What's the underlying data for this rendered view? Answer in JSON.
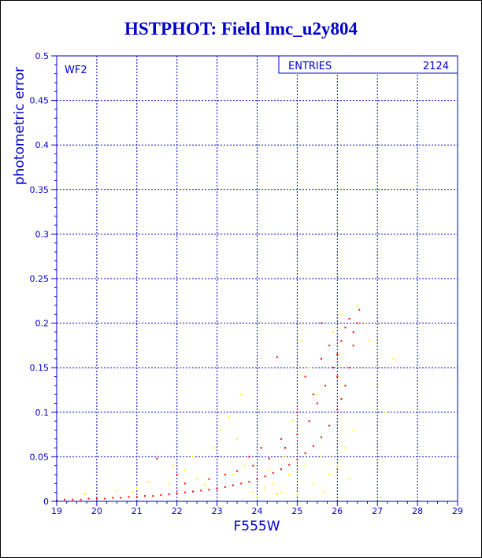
{
  "title": "HSTPHOT: Field lmc_u2y804",
  "colors": {
    "axis": "#0000cc",
    "grid": "#0000cc",
    "series_red": "#ff0000",
    "series_yellow": "#ffff00",
    "title": "#0000cc"
  },
  "stats_box": {
    "label": "ENTRIES",
    "value": "2124"
  },
  "chip_label": "WF2",
  "chart_data": {
    "type": "scatter",
    "title": "HSTPHOT: Field lmc_u2y804",
    "xlabel": "F555W",
    "ylabel": "photometric error",
    "xlim": [
      19,
      29
    ],
    "ylim": [
      0,
      0.5
    ],
    "xticks": [
      "19",
      "20",
      "21",
      "22",
      "23",
      "24",
      "25",
      "26",
      "27",
      "28",
      "29"
    ],
    "yticks": [
      "0",
      "0.05",
      "0.1",
      "0.15",
      "0.2",
      "0.25",
      "0.3",
      "0.35",
      "0.4",
      "0.45",
      "0.5"
    ],
    "grid": true,
    "series": [
      {
        "color": "#ff0000",
        "points": [
          [
            19.0,
            0.001
          ],
          [
            19.2,
            0.002
          ],
          [
            19.4,
            0.002
          ],
          [
            19.6,
            0.002
          ],
          [
            19.8,
            0.003
          ],
          [
            20.0,
            0.003
          ],
          [
            20.2,
            0.003
          ],
          [
            20.4,
            0.004
          ],
          [
            20.6,
            0.004
          ],
          [
            20.8,
            0.005
          ],
          [
            21.0,
            0.005
          ],
          [
            21.2,
            0.006
          ],
          [
            21.4,
            0.006
          ],
          [
            21.6,
            0.007
          ],
          [
            21.8,
            0.008
          ],
          [
            22.0,
            0.009
          ],
          [
            22.2,
            0.01
          ],
          [
            22.4,
            0.011
          ],
          [
            22.6,
            0.012
          ],
          [
            22.8,
            0.013
          ],
          [
            23.0,
            0.014
          ],
          [
            23.2,
            0.016
          ],
          [
            23.4,
            0.018
          ],
          [
            23.6,
            0.02
          ],
          [
            23.8,
            0.022
          ],
          [
            24.0,
            0.025
          ],
          [
            24.2,
            0.028
          ],
          [
            24.4,
            0.032
          ],
          [
            24.6,
            0.036
          ],
          [
            24.8,
            0.041
          ],
          [
            25.0,
            0.047
          ],
          [
            25.2,
            0.054
          ],
          [
            25.4,
            0.062
          ],
          [
            25.6,
            0.072
          ],
          [
            25.8,
            0.085
          ],
          [
            26.0,
            0.103
          ],
          [
            26.1,
            0.115
          ],
          [
            26.2,
            0.13
          ],
          [
            26.3,
            0.15
          ],
          [
            26.4,
            0.175
          ],
          [
            26.5,
            0.2
          ],
          [
            26.55,
            0.215
          ],
          [
            22.8,
            0.025
          ],
          [
            23.2,
            0.03
          ],
          [
            23.5,
            0.034
          ],
          [
            23.9,
            0.04
          ],
          [
            24.3,
            0.048
          ],
          [
            24.7,
            0.06
          ],
          [
            25.0,
            0.075
          ],
          [
            25.3,
            0.09
          ],
          [
            25.5,
            0.11
          ],
          [
            25.7,
            0.13
          ],
          [
            25.9,
            0.15
          ],
          [
            26.0,
            0.165
          ],
          [
            26.1,
            0.18
          ],
          [
            26.2,
            0.195
          ],
          [
            25.8,
            0.175
          ],
          [
            25.2,
            0.14
          ],
          [
            24.5,
            0.162
          ],
          [
            25.6,
            0.2
          ],
          [
            26.3,
            0.205
          ],
          [
            26.4,
            0.19
          ],
          [
            21.5,
            0.048
          ],
          [
            22.2,
            0.02
          ],
          [
            22.0,
            0.03
          ],
          [
            23.8,
            0.05
          ],
          [
            24.1,
            0.06
          ],
          [
            24.6,
            0.07
          ],
          [
            25.0,
            0.1
          ],
          [
            25.4,
            0.12
          ],
          [
            25.6,
            0.16
          ],
          [
            26.0,
            0.14
          ]
        ]
      },
      {
        "color": "#ffff00",
        "points": [
          [
            19.7,
            0.008
          ],
          [
            20.5,
            0.012
          ],
          [
            21.0,
            0.015
          ],
          [
            21.8,
            0.02
          ],
          [
            22.2,
            0.035
          ],
          [
            22.5,
            0.025
          ],
          [
            22.9,
            0.06
          ],
          [
            23.1,
            0.08
          ],
          [
            23.3,
            0.095
          ],
          [
            23.5,
            0.07
          ],
          [
            23.7,
            0.04
          ],
          [
            23.9,
            0.01
          ],
          [
            24.0,
            0.005
          ],
          [
            24.2,
            0.015
          ],
          [
            24.4,
            0.02
          ],
          [
            24.6,
            0.01
          ],
          [
            24.8,
            0.03
          ],
          [
            25.0,
            0.008
          ],
          [
            25.2,
            0.04
          ],
          [
            25.4,
            0.02
          ],
          [
            25.6,
            0.05
          ],
          [
            25.8,
            0.03
          ],
          [
            26.0,
            0.04
          ],
          [
            26.2,
            0.06
          ],
          [
            26.4,
            0.08
          ],
          [
            26.6,
            0.15
          ],
          [
            26.8,
            0.18
          ],
          [
            27.0,
            0.13
          ],
          [
            27.2,
            0.1
          ],
          [
            27.4,
            0.16
          ],
          [
            25.1,
            0.18
          ],
          [
            25.3,
            0.15
          ],
          [
            25.5,
            0.12
          ],
          [
            24.9,
            0.09
          ],
          [
            24.7,
            0.05
          ],
          [
            24.3,
            0.035
          ],
          [
            23.6,
            0.12
          ],
          [
            23.4,
            0.03
          ],
          [
            22.7,
            0.018
          ],
          [
            26.5,
            0.22
          ],
          [
            26.7,
            0.2
          ],
          [
            26.1,
            0.21
          ],
          [
            25.9,
            0.19
          ],
          [
            24.5,
            0.008
          ],
          [
            25.7,
            0.01
          ],
          [
            26.3,
            0.025
          ],
          [
            22.4,
            0.05
          ],
          [
            21.9,
            0.04
          ],
          [
            21.3,
            0.022
          ],
          [
            20.9,
            0.01
          ]
        ]
      }
    ]
  }
}
